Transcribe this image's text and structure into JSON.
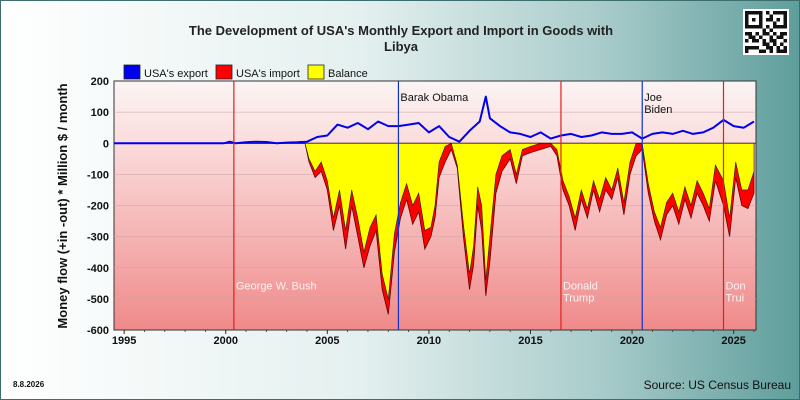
{
  "page": {
    "date_stamp": "8.8.2026",
    "source": "Source: US Census Bureau"
  },
  "chart_data": {
    "type": "area",
    "title_line1": "The Development of USA's Monthly Export and Import in Goods with",
    "title_line2": "Libya",
    "ylabel": "Money flow (+in -out) * Million $ / month",
    "xlim": [
      1994.5,
      2026.1
    ],
    "ylim": [
      -600,
      200
    ],
    "yticks": [
      200,
      100,
      0,
      -100,
      -200,
      -300,
      -400,
      -500,
      -600
    ],
    "xticks": [
      1995,
      2000,
      2005,
      2010,
      2015,
      2020,
      2025
    ],
    "grid": true,
    "legend_position": "top",
    "colors": {
      "export": "#0000ee",
      "import": "#ff0000",
      "balance": "#ffff00",
      "presidency_line_red": "#e02020",
      "presidency_line_blue": "#1030d0"
    },
    "legend": [
      {
        "key": "export",
        "label": "USA's export"
      },
      {
        "key": "import",
        "label": "USA's import"
      },
      {
        "key": "balance",
        "label": "Balance"
      }
    ],
    "presidencies": [
      {
        "x": 2000.4,
        "party": "R",
        "label_lines": [
          "George W. Bush"
        ],
        "label_y": -470
      },
      {
        "x": 2008.5,
        "party": "D",
        "label_lines": [
          "Barak Obama"
        ],
        "label_y": 135
      },
      {
        "x": 2016.5,
        "party": "R",
        "label_lines": [
          "Donald",
          "Trump"
        ],
        "label_y": -470
      },
      {
        "x": 2020.5,
        "party": "D",
        "label_lines": [
          "Joe",
          "Biden"
        ],
        "label_y": 135
      },
      {
        "x": 2024.5,
        "party": "R",
        "label_lines": [
          "Don",
          "Trui"
        ],
        "label_y": -470
      }
    ],
    "series": [
      {
        "name": "USA's export",
        "key": "export",
        "points": [
          [
            1994.5,
            0
          ],
          [
            1999.9,
            0
          ],
          [
            2000.2,
            5
          ],
          [
            2000.5,
            0
          ],
          [
            2001.0,
            3
          ],
          [
            2001.5,
            5
          ],
          [
            2002.0,
            4
          ],
          [
            2002.5,
            0
          ],
          [
            2003.0,
            2
          ],
          [
            2003.5,
            3
          ],
          [
            2004.0,
            5
          ],
          [
            2004.5,
            20
          ],
          [
            2005.0,
            25
          ],
          [
            2005.5,
            60
          ],
          [
            2006.0,
            50
          ],
          [
            2006.5,
            65
          ],
          [
            2007.0,
            45
          ],
          [
            2007.5,
            70
          ],
          [
            2008.0,
            55
          ],
          [
            2008.5,
            55
          ],
          [
            2009.0,
            60
          ],
          [
            2009.5,
            65
          ],
          [
            2010.0,
            35
          ],
          [
            2010.5,
            55
          ],
          [
            2011.0,
            20
          ],
          [
            2011.5,
            5
          ],
          [
            2012.0,
            40
          ],
          [
            2012.5,
            70
          ],
          [
            2012.8,
            150
          ],
          [
            2013.0,
            80
          ],
          [
            2013.5,
            55
          ],
          [
            2014.0,
            35
          ],
          [
            2014.5,
            30
          ],
          [
            2015.0,
            20
          ],
          [
            2015.5,
            35
          ],
          [
            2016.0,
            15
          ],
          [
            2016.5,
            25
          ],
          [
            2017.0,
            30
          ],
          [
            2017.5,
            20
          ],
          [
            2018.0,
            25
          ],
          [
            2018.5,
            35
          ],
          [
            2019.0,
            30
          ],
          [
            2019.5,
            30
          ],
          [
            2020.0,
            35
          ],
          [
            2020.5,
            15
          ],
          [
            2021.0,
            30
          ],
          [
            2021.5,
            35
          ],
          [
            2022.0,
            30
          ],
          [
            2022.5,
            40
          ],
          [
            2023.0,
            30
          ],
          [
            2023.5,
            35
          ],
          [
            2024.0,
            50
          ],
          [
            2024.5,
            75
          ],
          [
            2025.0,
            55
          ],
          [
            2025.5,
            50
          ],
          [
            2026.0,
            70
          ]
        ]
      },
      {
        "name": "USA's import",
        "key": "import",
        "points": [
          [
            1994.5,
            0
          ],
          [
            2003.9,
            0
          ],
          [
            2004.1,
            -60
          ],
          [
            2004.4,
            -110
          ],
          [
            2004.7,
            -90
          ],
          [
            2005.0,
            -150
          ],
          [
            2005.3,
            -280
          ],
          [
            2005.6,
            -200
          ],
          [
            2005.9,
            -340
          ],
          [
            2006.2,
            -200
          ],
          [
            2006.5,
            -300
          ],
          [
            2006.8,
            -400
          ],
          [
            2007.1,
            -330
          ],
          [
            2007.4,
            -280
          ],
          [
            2007.7,
            -470
          ],
          [
            2008.0,
            -550
          ],
          [
            2008.3,
            -350
          ],
          [
            2008.6,
            -240
          ],
          [
            2008.9,
            -180
          ],
          [
            2009.2,
            -260
          ],
          [
            2009.5,
            -220
          ],
          [
            2009.8,
            -340
          ],
          [
            2010.1,
            -300
          ],
          [
            2010.3,
            -240
          ],
          [
            2010.5,
            -110
          ],
          [
            2010.8,
            -60
          ],
          [
            2011.1,
            -20
          ],
          [
            2011.4,
            -80
          ],
          [
            2011.7,
            -300
          ],
          [
            2012.0,
            -470
          ],
          [
            2012.2,
            -390
          ],
          [
            2012.4,
            -200
          ],
          [
            2012.6,
            -280
          ],
          [
            2012.8,
            -490
          ],
          [
            2013.0,
            -380
          ],
          [
            2013.3,
            -160
          ],
          [
            2013.6,
            -90
          ],
          [
            2014.0,
            -50
          ],
          [
            2014.3,
            -130
          ],
          [
            2014.6,
            -40
          ],
          [
            2015.0,
            -30
          ],
          [
            2015.5,
            -20
          ],
          [
            2016.0,
            -10
          ],
          [
            2016.3,
            -40
          ],
          [
            2016.6,
            -150
          ],
          [
            2016.9,
            -200
          ],
          [
            2017.2,
            -280
          ],
          [
            2017.5,
            -180
          ],
          [
            2017.8,
            -240
          ],
          [
            2018.1,
            -150
          ],
          [
            2018.4,
            -220
          ],
          [
            2018.7,
            -150
          ],
          [
            2019.0,
            -180
          ],
          [
            2019.3,
            -110
          ],
          [
            2019.6,
            -230
          ],
          [
            2019.9,
            -100
          ],
          [
            2020.2,
            -40
          ],
          [
            2020.5,
            -20
          ],
          [
            2020.8,
            -160
          ],
          [
            2021.1,
            -250
          ],
          [
            2021.4,
            -310
          ],
          [
            2021.7,
            -230
          ],
          [
            2022.0,
            -200
          ],
          [
            2022.3,
            -260
          ],
          [
            2022.6,
            -180
          ],
          [
            2022.9,
            -240
          ],
          [
            2023.2,
            -160
          ],
          [
            2023.5,
            -200
          ],
          [
            2023.8,
            -250
          ],
          [
            2024.1,
            -120
          ],
          [
            2024.5,
            -200
          ],
          [
            2024.8,
            -300
          ],
          [
            2025.1,
            -110
          ],
          [
            2025.4,
            -200
          ],
          [
            2025.7,
            -210
          ],
          [
            2026.0,
            -160
          ]
        ]
      },
      {
        "name": "Balance",
        "key": "balance",
        "points": [
          [
            1994.5,
            0
          ],
          [
            2003.9,
            0
          ],
          [
            2004.1,
            -50
          ],
          [
            2004.4,
            -90
          ],
          [
            2004.7,
            -60
          ],
          [
            2005.0,
            -120
          ],
          [
            2005.3,
            -240
          ],
          [
            2005.6,
            -150
          ],
          [
            2005.9,
            -280
          ],
          [
            2006.2,
            -150
          ],
          [
            2006.5,
            -240
          ],
          [
            2006.8,
            -350
          ],
          [
            2007.1,
            -270
          ],
          [
            2007.4,
            -230
          ],
          [
            2007.7,
            -420
          ],
          [
            2008.0,
            -500
          ],
          [
            2008.3,
            -290
          ],
          [
            2008.6,
            -190
          ],
          [
            2008.9,
            -130
          ],
          [
            2009.2,
            -200
          ],
          [
            2009.5,
            -160
          ],
          [
            2009.8,
            -280
          ],
          [
            2010.1,
            -270
          ],
          [
            2010.3,
            -200
          ],
          [
            2010.5,
            -60
          ],
          [
            2010.8,
            -10
          ],
          [
            2011.1,
            0
          ],
          [
            2011.4,
            -70
          ],
          [
            2011.7,
            -260
          ],
          [
            2012.0,
            -420
          ],
          [
            2012.2,
            -330
          ],
          [
            2012.4,
            -140
          ],
          [
            2012.6,
            -200
          ],
          [
            2012.8,
            -440
          ],
          [
            2013.0,
            -300
          ],
          [
            2013.3,
            -100
          ],
          [
            2013.6,
            -40
          ],
          [
            2014.0,
            -20
          ],
          [
            2014.3,
            -100
          ],
          [
            2014.6,
            -20
          ],
          [
            2015.0,
            -10
          ],
          [
            2015.5,
            0
          ],
          [
            2016.0,
            0
          ],
          [
            2016.3,
            -20
          ],
          [
            2016.6,
            -120
          ],
          [
            2016.9,
            -170
          ],
          [
            2017.2,
            -240
          ],
          [
            2017.5,
            -150
          ],
          [
            2017.8,
            -210
          ],
          [
            2018.1,
            -120
          ],
          [
            2018.4,
            -180
          ],
          [
            2018.7,
            -110
          ],
          [
            2019.0,
            -150
          ],
          [
            2019.3,
            -80
          ],
          [
            2019.6,
            -190
          ],
          [
            2019.9,
            -60
          ],
          [
            2020.2,
            0
          ],
          [
            2020.5,
            0
          ],
          [
            2020.8,
            -130
          ],
          [
            2021.1,
            -220
          ],
          [
            2021.4,
            -270
          ],
          [
            2021.7,
            -190
          ],
          [
            2022.0,
            -160
          ],
          [
            2022.3,
            -220
          ],
          [
            2022.6,
            -140
          ],
          [
            2022.9,
            -200
          ],
          [
            2023.2,
            -120
          ],
          [
            2023.5,
            -160
          ],
          [
            2023.8,
            -210
          ],
          [
            2024.1,
            -70
          ],
          [
            2024.5,
            -120
          ],
          [
            2024.8,
            -240
          ],
          [
            2025.1,
            -60
          ],
          [
            2025.4,
            -150
          ],
          [
            2025.7,
            -150
          ],
          [
            2026.0,
            -90
          ]
        ]
      }
    ]
  }
}
